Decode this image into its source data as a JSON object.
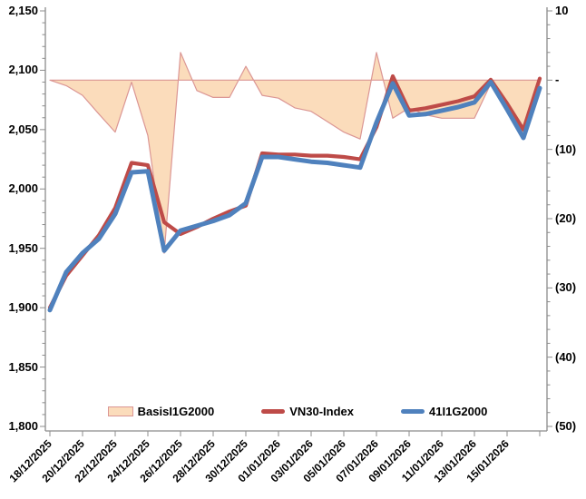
{
  "chart_data": {
    "type": "combo",
    "title": "",
    "background": "#FFFFFF",
    "grid": false,
    "legend_position": "bottom",
    "x_dates": [
      "18/12/2025",
      "19/12/2025",
      "20/12/2025",
      "21/12/2025",
      "22/12/2025",
      "23/12/2025",
      "24/12/2025",
      "25/12/2025",
      "26/12/2025",
      "27/12/2025",
      "28/12/2025",
      "29/12/2025",
      "30/12/2025",
      "31/12/2025",
      "01/01/2026",
      "02/01/2026",
      "03/01/2026",
      "04/01/2026",
      "05/01/2026",
      "06/01/2026",
      "07/01/2026",
      "08/01/2026",
      "09/01/2026",
      "10/01/2026",
      "11/01/2026",
      "12/01/2026",
      "13/01/2026",
      "14/01/2026",
      "15/01/2026",
      "16/01/2026",
      "17/01/2026"
    ],
    "x_tick_labels": [
      "18/12/2025",
      "20/12/2025",
      "22/12/2025",
      "24/12/2025",
      "26/12/2025",
      "28/12/2025",
      "30/12/2025",
      "01/01/2026",
      "03/01/2026",
      "05/01/2026",
      "07/01/2026",
      "09/01/2026",
      "11/01/2026",
      "13/01/2026",
      "15/01/2026"
    ],
    "left_axis": {
      "min": 1800,
      "max": 2150,
      "major_step": 50,
      "minor_step": 10,
      "tick_labels": [
        "2,150",
        "2,100",
        "2,050",
        "2,000",
        "1,950",
        "1,900",
        "1,850",
        "1,800"
      ]
    },
    "right_axis": {
      "min": -50,
      "max": 10,
      "major_step": 10,
      "minor_step": 2,
      "tick_labels": [
        "10",
        "-",
        "(10)",
        "(20)",
        "(30)",
        "(40)",
        "(50)"
      ]
    },
    "series": [
      {
        "name": "BasisI1G2000",
        "type": "area",
        "axis": "right",
        "fill_color": "#FBDCBB",
        "stroke_color": "#DB9694",
        "values": [
          0,
          -0.8,
          -2.2,
          -4.9,
          -7.5,
          -0.3,
          -8,
          -25,
          4,
          -1.5,
          -2.5,
          -2.5,
          2,
          -2.2,
          -2.6,
          -4,
          -4.5,
          -6,
          -7.5,
          -8.5,
          4,
          -5.5,
          -4,
          -5,
          -5.5,
          -5.5,
          -5.5,
          -0.5,
          -4,
          -8,
          0.4
        ]
      },
      {
        "name": "VN30-Index",
        "type": "line",
        "axis": "left",
        "color": "#BE4B48",
        "values": [
          1900,
          1927,
          1944,
          1961,
          1984,
          2022,
          2020,
          1972,
          1962,
          1968,
          1975,
          1981,
          1986,
          2030,
          2029,
          2029,
          2028,
          2028,
          2027,
          2025,
          2052,
          2095,
          2066,
          2068,
          2071,
          2074,
          2078,
          2092,
          2072,
          2050,
          2093
        ]
      },
      {
        "name": "41I1G2000",
        "type": "line",
        "axis": "left",
        "color": "#4F81BD",
        "values": [
          1898,
          1930,
          1946,
          1958,
          1979,
          2014,
          2015,
          1948,
          1965,
          1969,
          1973,
          1978,
          1988,
          2027,
          2027,
          2025,
          2023,
          2022,
          2020,
          2018,
          2056,
          2089,
          2062,
          2063,
          2066,
          2069,
          2073,
          2090,
          2067,
          2043,
          2085
        ]
      }
    ],
    "axis_color": "#8C8C8C"
  },
  "legend": {
    "items": [
      {
        "label": "BasisI1G2000"
      },
      {
        "label": "VN30-Index"
      },
      {
        "label": "41I1G2000"
      }
    ]
  }
}
